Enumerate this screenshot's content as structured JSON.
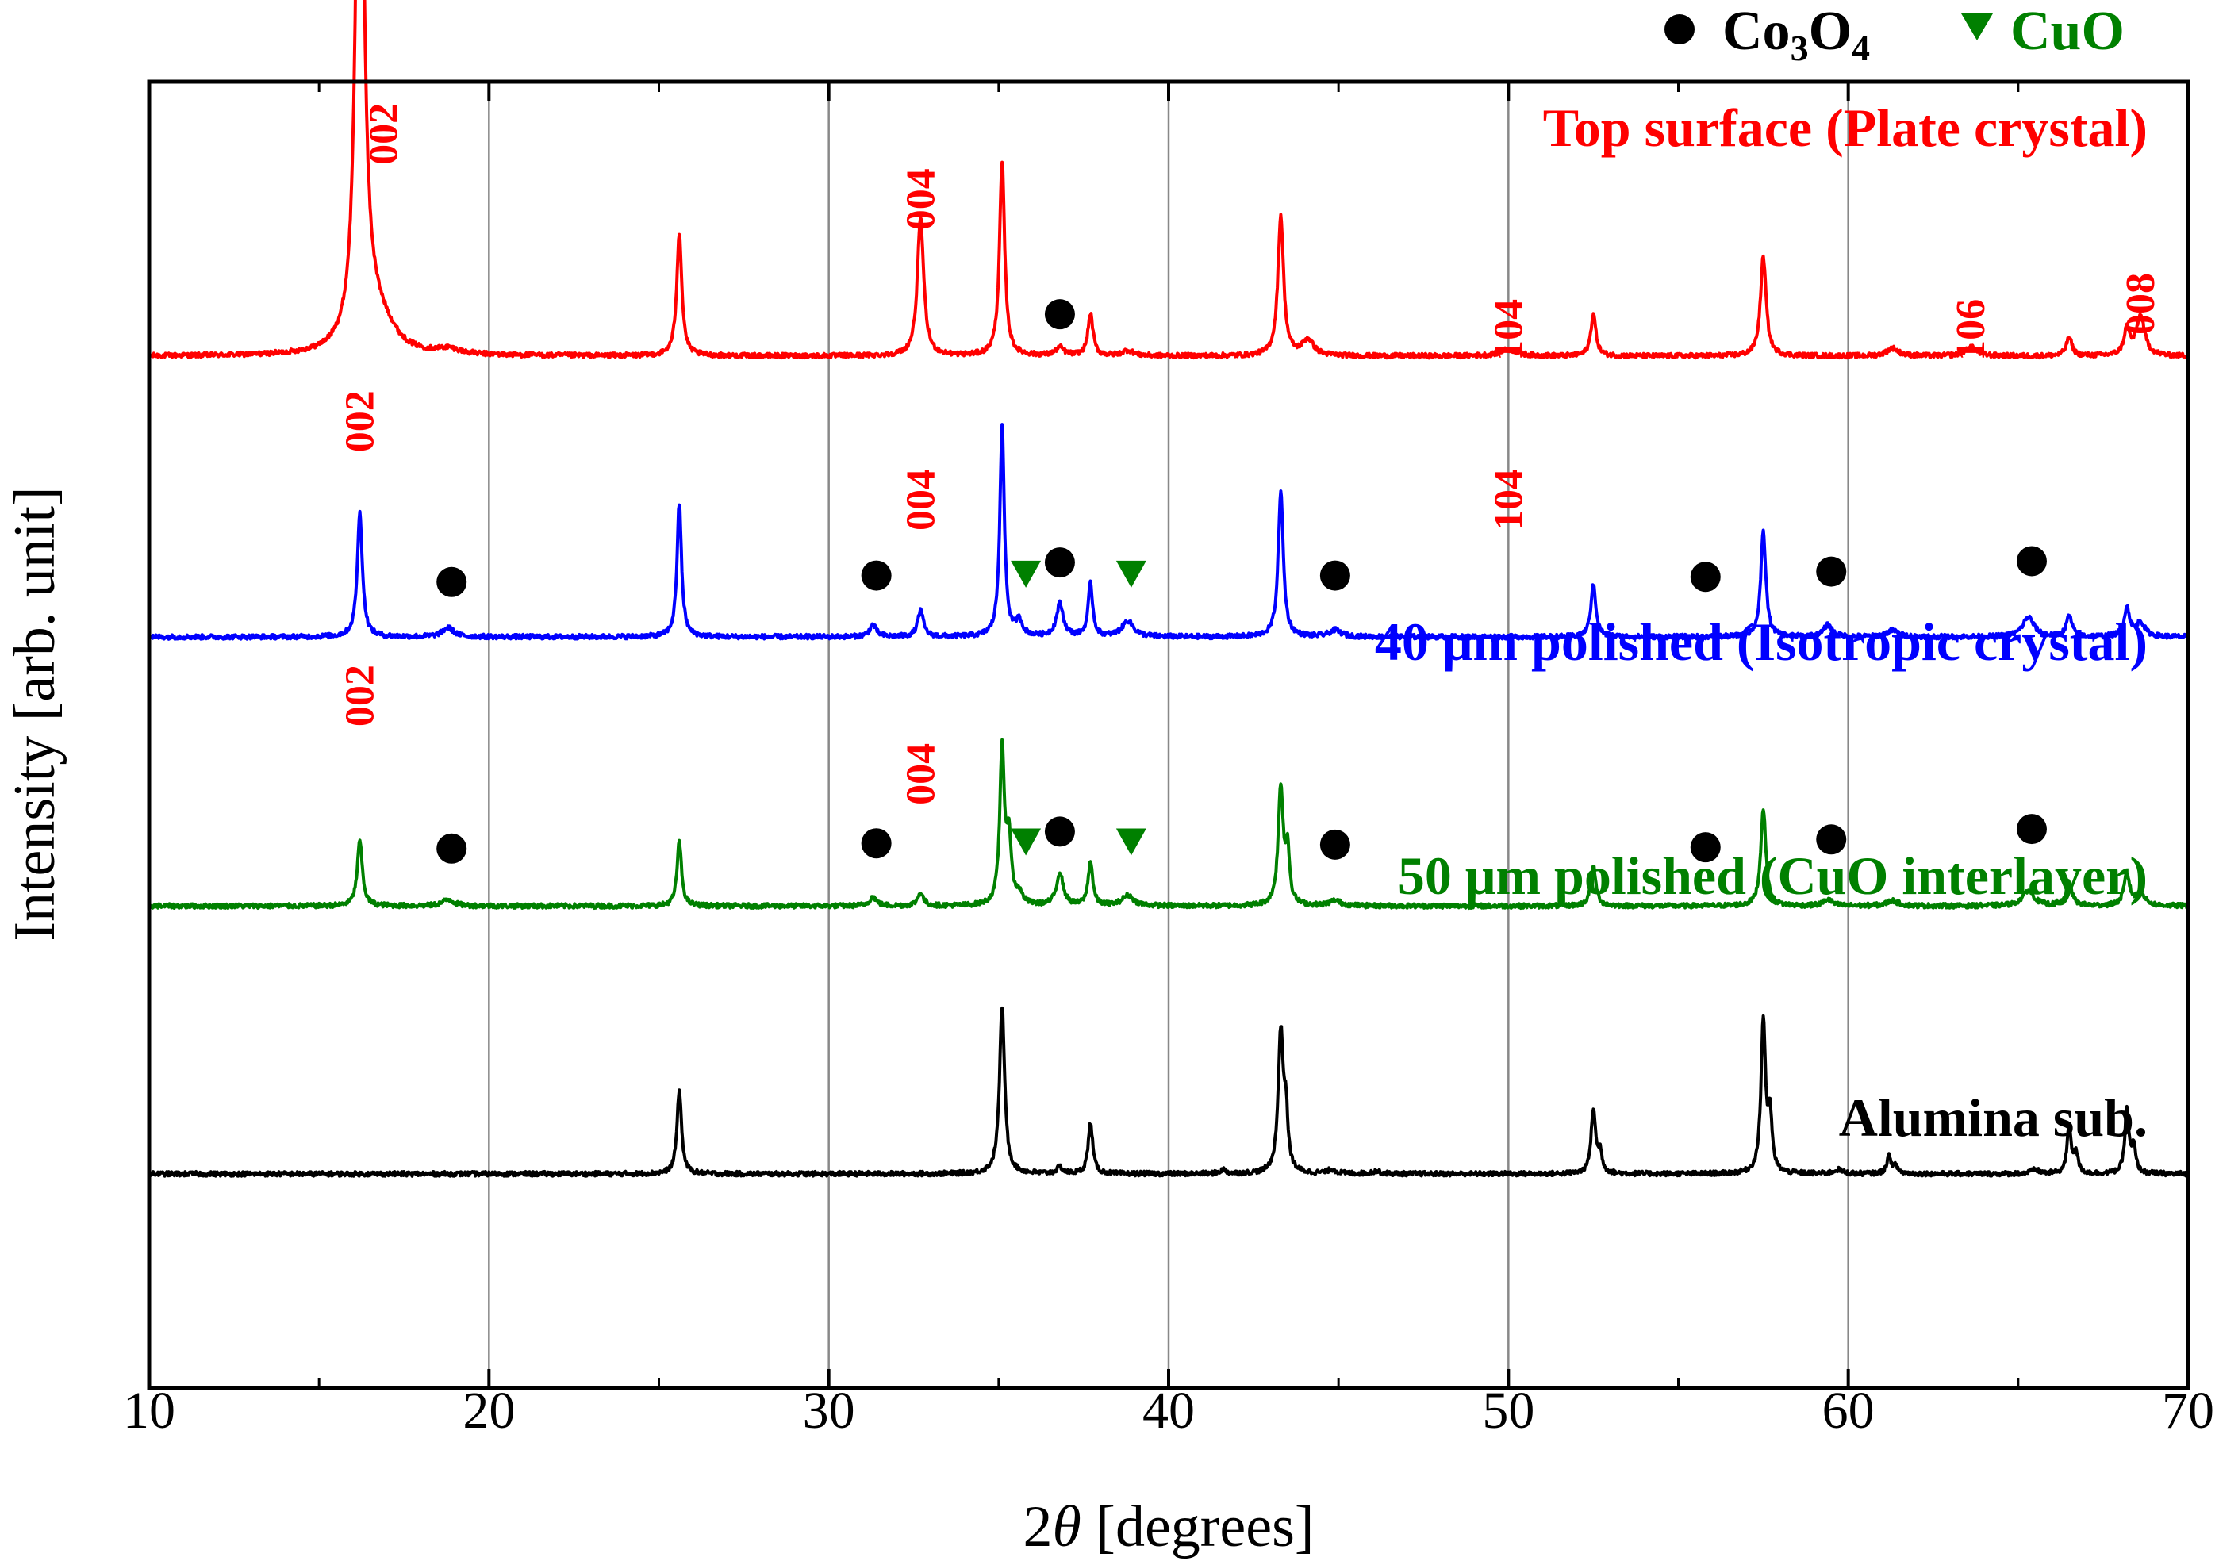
{
  "chart_data": {
    "type": "line",
    "title": "",
    "xlabel": "2θ [degrees]",
    "xlabel_theta": "θ",
    "xlabel_two": "2",
    "xlabel_rest": " [degrees]",
    "ylabel": "Intensity [arb. unit]",
    "xlim": [
      10,
      70
    ],
    "ylim": [
      0,
      100
    ],
    "grid": "vertical",
    "xticks": [
      10,
      20,
      30,
      40,
      50,
      60,
      70
    ],
    "xtick_labels": [
      "10",
      "20",
      "30",
      "40",
      "50",
      "60",
      "70"
    ],
    "legend": {
      "placement": "top-right",
      "co3o4_label": "Co",
      "co3o4_sub1": "3",
      "co3o4_o": "O",
      "co3o4_sub2": "4",
      "cuo_label": "CuO",
      "co3o4_color": "#000000",
      "cuo_color": "#008000"
    },
    "series": [
      {
        "name": "Top surface (Plate crystal)",
        "label": "Top surface (Plate crystal)",
        "color": "#ff0000",
        "baseline": 79,
        "peaks": [
          [
            16.2,
            52,
            0.13
          ],
          [
            16.5,
            3,
            0.5
          ],
          [
            17.0,
            0.8,
            0.4
          ],
          [
            18.8,
            0.4,
            0.4
          ],
          [
            25.6,
            9.4,
            0.09
          ],
          [
            32.7,
            10.6,
            0.11
          ],
          [
            35.1,
            14.8,
            0.09
          ],
          [
            36.8,
            0.6,
            0.15
          ],
          [
            37.7,
            3.2,
            0.09
          ],
          [
            38.8,
            0.4,
            0.2
          ],
          [
            43.3,
            10.7,
            0.1
          ],
          [
            44.1,
            1.2,
            0.2
          ],
          [
            50.0,
            0.5,
            0.3
          ],
          [
            52.5,
            3.2,
            0.09
          ],
          [
            57.5,
            7.6,
            0.1
          ],
          [
            61.3,
            0.6,
            0.2
          ],
          [
            63.6,
            0.7,
            0.2
          ],
          [
            66.5,
            1.4,
            0.1
          ],
          [
            68.2,
            2.0,
            0.1
          ],
          [
            68.6,
            3.0,
            0.15
          ]
        ],
        "annotations": [
          {
            "text": "002",
            "x": 16.9,
            "y": 96
          },
          {
            "text": "004",
            "x": 32.7,
            "y": 91
          },
          {
            "text": "104",
            "x": 50.0,
            "y": 81
          },
          {
            "text": "106",
            "x": 63.6,
            "y": 81
          },
          {
            "text": "008",
            "x": 68.6,
            "y": 83
          }
        ],
        "co3o4_markers": [
          [
            36.8,
            82.2
          ]
        ],
        "cuo_markers": []
      },
      {
        "name": "40 µm polished (Isotropic crystal)",
        "label": "40 μm polished (Isotropic crystal)",
        "color": "#0000ff",
        "baseline": 57.5,
        "peaks": [
          [
            16.2,
            9.5,
            0.09
          ],
          [
            18.8,
            0.7,
            0.2
          ],
          [
            25.6,
            10.2,
            0.08
          ],
          [
            31.3,
            0.9,
            0.12
          ],
          [
            32.7,
            2.0,
            0.1
          ],
          [
            35.1,
            16.0,
            0.08
          ],
          [
            35.6,
            1.1,
            0.12
          ],
          [
            36.8,
            2.5,
            0.12
          ],
          [
            37.7,
            4.0,
            0.08
          ],
          [
            38.8,
            1.2,
            0.2
          ],
          [
            43.3,
            11.1,
            0.09
          ],
          [
            44.9,
            0.5,
            0.2
          ],
          [
            52.5,
            4.0,
            0.09
          ],
          [
            57.5,
            8.0,
            0.09
          ],
          [
            59.4,
            0.9,
            0.15
          ],
          [
            61.3,
            0.5,
            0.2
          ],
          [
            65.3,
            1.5,
            0.2
          ],
          [
            66.5,
            1.6,
            0.1
          ],
          [
            68.2,
            2.2,
            0.1
          ],
          [
            68.6,
            1.1,
            0.15
          ]
        ],
        "annotations": [
          {
            "text": "002",
            "x": 16.2,
            "y": 74
          },
          {
            "text": "004",
            "x": 32.7,
            "y": 68
          },
          {
            "text": "104",
            "x": 50.0,
            "y": 68
          }
        ],
        "co3o4_markers": [
          [
            18.9,
            61.7
          ],
          [
            31.4,
            62.2
          ],
          [
            36.8,
            63.2
          ],
          [
            44.9,
            62.2
          ],
          [
            55.8,
            62.1
          ],
          [
            59.5,
            62.5
          ],
          [
            65.4,
            63.3
          ]
        ],
        "cuo_markers": [
          [
            35.8,
            62.3
          ],
          [
            38.9,
            62.3
          ]
        ]
      },
      {
        "name": "50 µm polished (CuO interlayer)",
        "label": "50 μm polished (CuO interlayer)",
        "color": "#008000",
        "baseline": 36.9,
        "peaks": [
          [
            16.2,
            5.0,
            0.09
          ],
          [
            18.8,
            0.5,
            0.2
          ],
          [
            25.6,
            4.9,
            0.08
          ],
          [
            31.3,
            0.7,
            0.12
          ],
          [
            32.7,
            1.0,
            0.1
          ],
          [
            35.1,
            12.0,
            0.08
          ],
          [
            35.3,
            5.0,
            0.08
          ],
          [
            35.6,
            0.8,
            0.12
          ],
          [
            36.8,
            2.5,
            0.12
          ],
          [
            37.7,
            3.4,
            0.08
          ],
          [
            38.8,
            0.8,
            0.2
          ],
          [
            43.3,
            9.0,
            0.09
          ],
          [
            43.5,
            4.0,
            0.07
          ],
          [
            44.9,
            0.4,
            0.2
          ],
          [
            52.5,
            3.0,
            0.09
          ],
          [
            57.5,
            7.5,
            0.09
          ],
          [
            59.4,
            0.5,
            0.15
          ],
          [
            61.3,
            0.4,
            0.2
          ],
          [
            65.3,
            1.2,
            0.2
          ],
          [
            66.5,
            1.8,
            0.1
          ],
          [
            68.2,
            2.4,
            0.1
          ],
          [
            68.6,
            1.0,
            0.15
          ]
        ],
        "annotations": [
          {
            "text": "002",
            "x": 16.2,
            "y": 53
          },
          {
            "text": "004",
            "x": 32.7,
            "y": 47
          }
        ],
        "co3o4_markers": [
          [
            18.9,
            41.3
          ],
          [
            31.4,
            41.7
          ],
          [
            36.8,
            42.6
          ],
          [
            44.9,
            41.6
          ],
          [
            55.8,
            41.4
          ],
          [
            59.5,
            42.0
          ],
          [
            65.4,
            42.8
          ]
        ],
        "cuo_markers": [
          [
            35.8,
            41.8
          ],
          [
            38.9,
            41.8
          ]
        ]
      },
      {
        "name": "Alumina sub.",
        "label": "Alumina sub.",
        "color": "#000000",
        "baseline": 16.4,
        "peaks": [
          [
            25.6,
            6.4,
            0.08
          ],
          [
            35.1,
            12.8,
            0.09
          ],
          [
            36.8,
            0.5,
            0.1
          ],
          [
            37.7,
            3.9,
            0.08
          ],
          [
            41.6,
            0.3,
            0.1
          ],
          [
            43.3,
            10.7,
            0.09
          ],
          [
            43.45,
            4.0,
            0.07
          ],
          [
            44.8,
            0.3,
            0.15
          ],
          [
            46.1,
            0.2,
            0.15
          ],
          [
            52.5,
            4.9,
            0.08
          ],
          [
            52.7,
            1.5,
            0.07
          ],
          [
            57.5,
            11.7,
            0.08
          ],
          [
            57.7,
            4.0,
            0.07
          ],
          [
            59.7,
            0.3,
            0.15
          ],
          [
            61.2,
            1.3,
            0.08
          ],
          [
            61.4,
            0.5,
            0.08
          ],
          [
            65.5,
            0.3,
            0.15
          ],
          [
            66.5,
            3.7,
            0.07
          ],
          [
            66.7,
            1.6,
            0.07
          ],
          [
            68.2,
            5.0,
            0.07
          ],
          [
            68.4,
            2.0,
            0.07
          ]
        ],
        "annotations": [],
        "co3o4_markers": [],
        "cuo_markers": []
      }
    ]
  }
}
